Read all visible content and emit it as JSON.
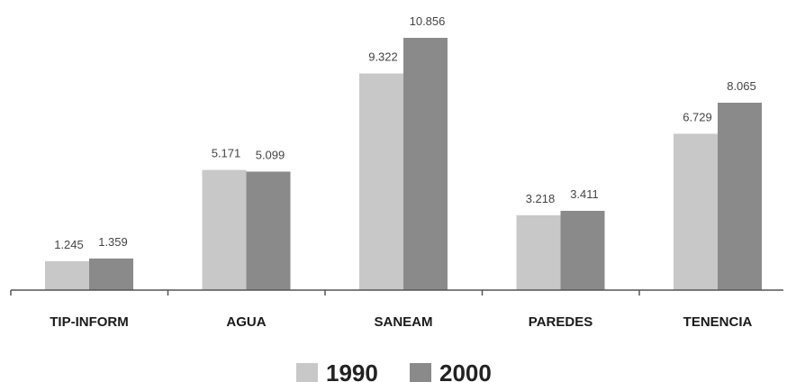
{
  "chart_data": {
    "type": "bar",
    "title": "",
    "xlabel": "",
    "ylabel": "",
    "categories": [
      "TIP-INFORM",
      "AGUA",
      "SANEAM",
      "PAREDES",
      "TENENCIA"
    ],
    "series": [
      {
        "name": "1990",
        "color": "#c8c8c8",
        "values": [
          1.245,
          5.171,
          9.322,
          3.218,
          6.729
        ],
        "labels": [
          "1.245",
          "5.171",
          "9.322",
          "3.218",
          "6.729"
        ]
      },
      {
        "name": "2000",
        "color": "#8a8a8a",
        "values": [
          1.359,
          5.099,
          10.856,
          3.411,
          8.065
        ],
        "labels": [
          "1.359",
          "5.099",
          "10.856",
          "3.411",
          "8.065"
        ]
      }
    ],
    "ylim": [
      0,
      10.856
    ],
    "grid": false,
    "legend": "bottom"
  }
}
